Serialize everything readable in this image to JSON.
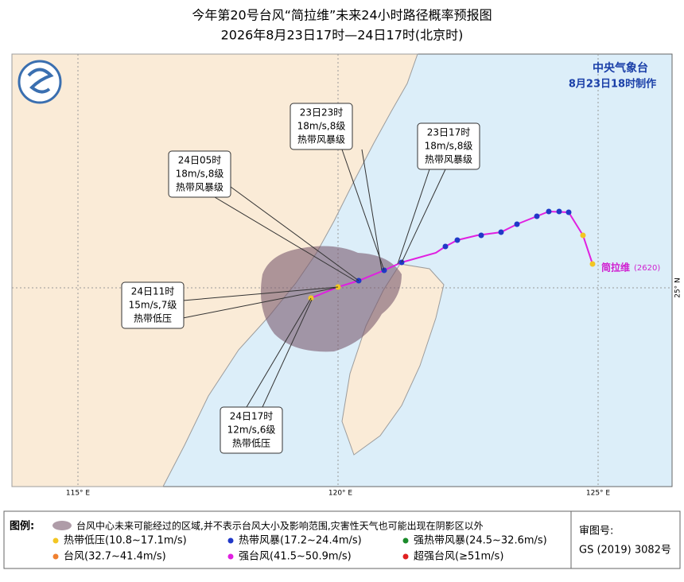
{
  "header": {
    "title": "今年第20号台风“简拉维”未来24小时路径概率预报图",
    "subtitle": "2026年8月23日17时—24日17时(北京时)"
  },
  "agency": {
    "name": "中央气象台",
    "issued": "8月23日18时制作"
  },
  "storm": {
    "name": "简拉维",
    "code": "(2620)"
  },
  "callouts": [
    {
      "time": "23日23时",
      "wind": "18m/s,8级",
      "level": "热带风暴级"
    },
    {
      "time": "23日17时",
      "wind": "18m/s,8级",
      "level": "热带风暴级"
    },
    {
      "time": "24日05时",
      "wind": "18m/s,8级",
      "level": "热带风暴级"
    },
    {
      "time": "24日11时",
      "wind": "15m/s,7级",
      "level": "热带低压"
    },
    {
      "time": "24日17时",
      "wind": "12m/s,6级",
      "level": "热带低压"
    }
  ],
  "axes": {
    "lon": [
      "115° E",
      "120° E",
      "125° E"
    ],
    "lat": [
      "25° N"
    ]
  },
  "legend": {
    "title": "图例:",
    "area": "台风中心未来可能经过的区域,并不表示台风大小及影响范围,灾害性天气也可能出现在阴影区以外",
    "items": [
      "热带低压(10.8~17.1m/s)",
      "热带风暴(17.2~24.4m/s)",
      "强热带风暴(24.5~32.6m/s)",
      "台风(32.7~41.4m/s)",
      "强台风(41.5~50.9m/s)",
      "超强台风(≥51m/s)"
    ]
  },
  "review": {
    "label": "审图号:",
    "number": "GS (2019) 3082号"
  }
}
